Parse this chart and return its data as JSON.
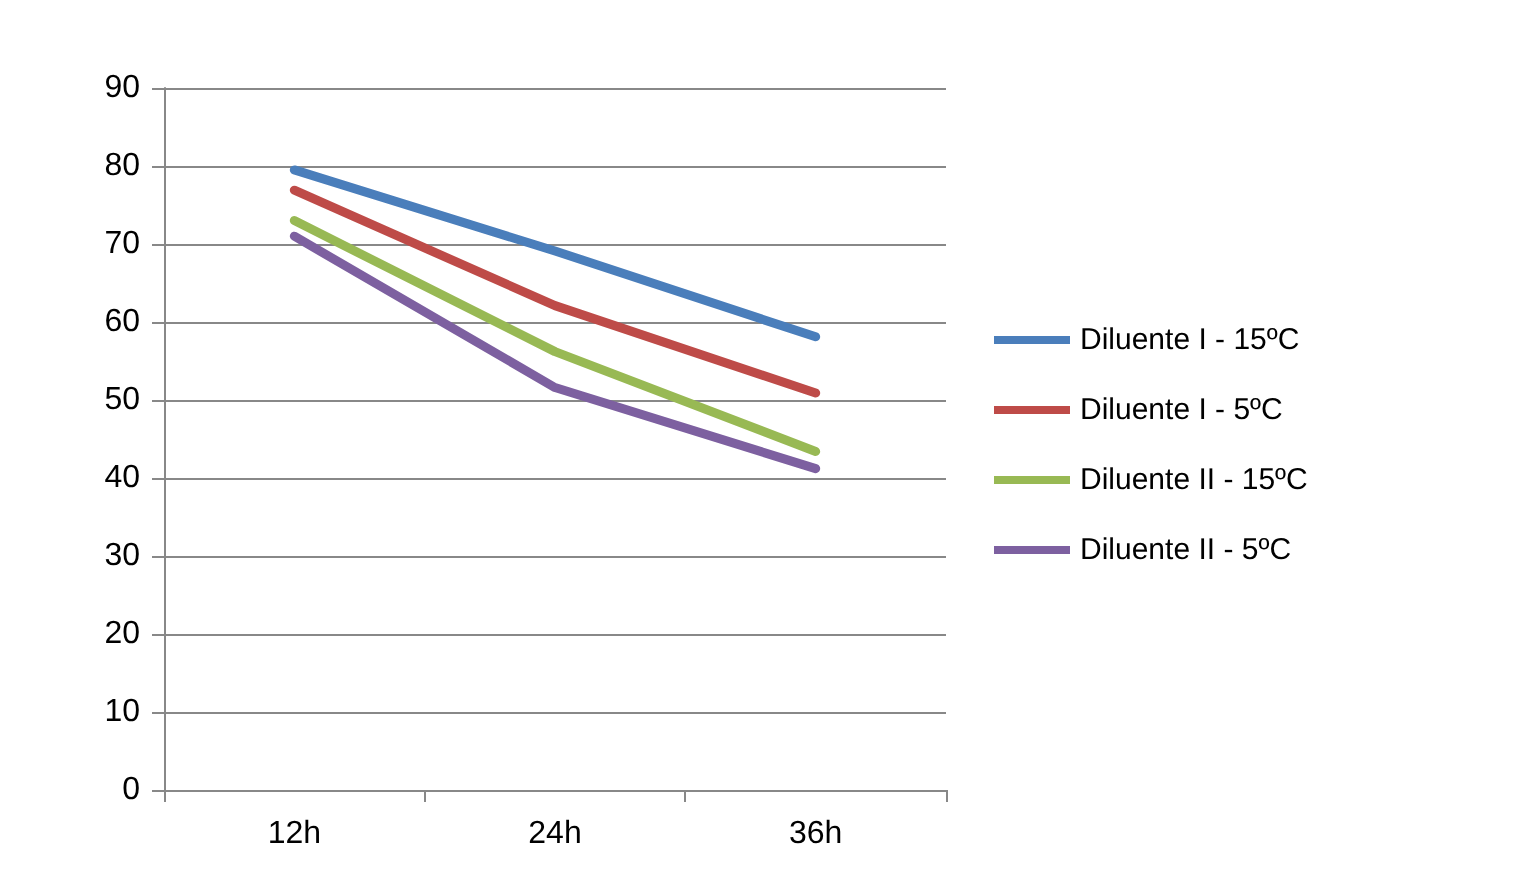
{
  "chart_data": {
    "type": "line",
    "categories": [
      "12h",
      "24h",
      "36h"
    ],
    "series": [
      {
        "name": "Diluente I - 15ºC",
        "color": "#4a7ebb",
        "values": [
          79.5,
          69.1,
          58.1
        ]
      },
      {
        "name": "Diluente I - 5ºC",
        "color": "#be4b48",
        "values": [
          76.9,
          62.1,
          50.9
        ]
      },
      {
        "name": "Diluente II - 15ºC",
        "color": "#98b954",
        "values": [
          73,
          56.2,
          43.4
        ]
      },
      {
        "name": "Diluente II - 5ºC",
        "color": "#7d60a0",
        "values": [
          71,
          51.6,
          41.2
        ]
      }
    ],
    "ylim": [
      0,
      90
    ],
    "yticks": [
      0,
      10,
      20,
      30,
      40,
      50,
      60,
      70,
      80,
      90
    ],
    "grid": "y",
    "legend": "right",
    "marker": "none",
    "line_style": "solid"
  }
}
